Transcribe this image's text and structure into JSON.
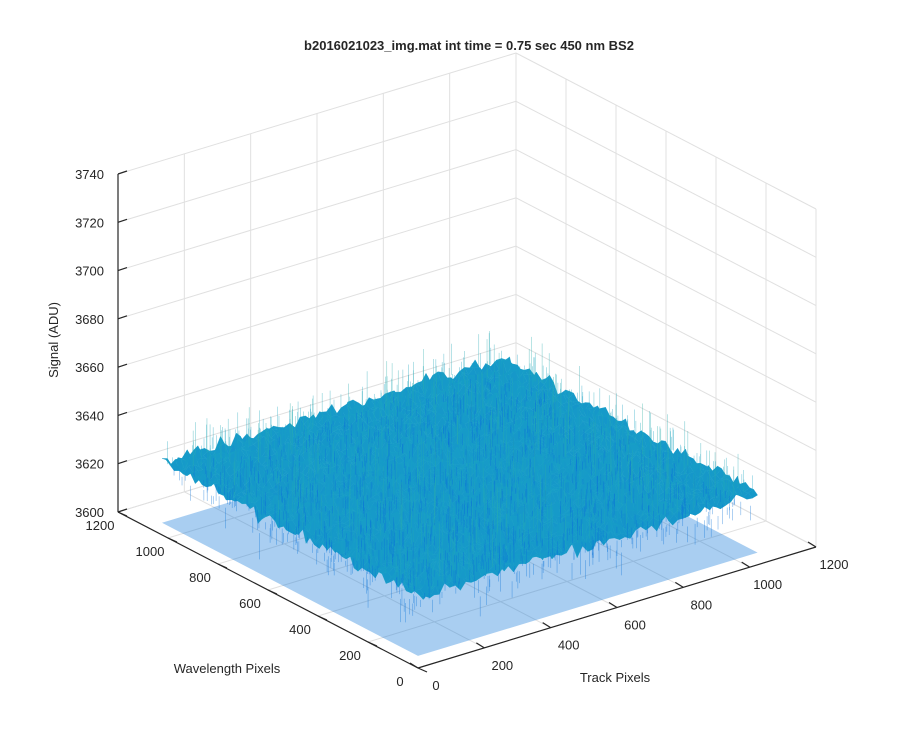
{
  "chart_data": {
    "type": "surface",
    "title": "b2016021023_img.mat int time = 0.75 sec  450 nm BS2",
    "xlabel": "Track Pixels",
    "ylabel": "Wavelength Pixels",
    "zlabel": "Signal (ADU)",
    "xlim": [
      0,
      1200
    ],
    "ylim": [
      0,
      1200
    ],
    "zlim": [
      3600,
      3740
    ],
    "xticks": [
      "0",
      "200",
      "400",
      "600",
      "800",
      "1000",
      "1200"
    ],
    "yticks": [
      "0",
      "200",
      "400",
      "600",
      "800",
      "1000",
      "1200"
    ],
    "zticks": [
      "3600",
      "3620",
      "3640",
      "3660",
      "3680",
      "3700",
      "3720",
      "3740"
    ],
    "surface_extent": {
      "x": [
        0,
        1024
      ],
      "y": [
        0,
        1024
      ]
    },
    "signal_mean": 3630,
    "signal_typical_range": [
      3605,
      3660
    ],
    "signal_max_spike": 3700,
    "colormap": "parula",
    "colors": {
      "low": "#0a72d8",
      "mid": "#19a3c5",
      "high": "#4cc07a",
      "peak": "#d6d12f"
    },
    "grid": true,
    "view": "3d-default"
  }
}
